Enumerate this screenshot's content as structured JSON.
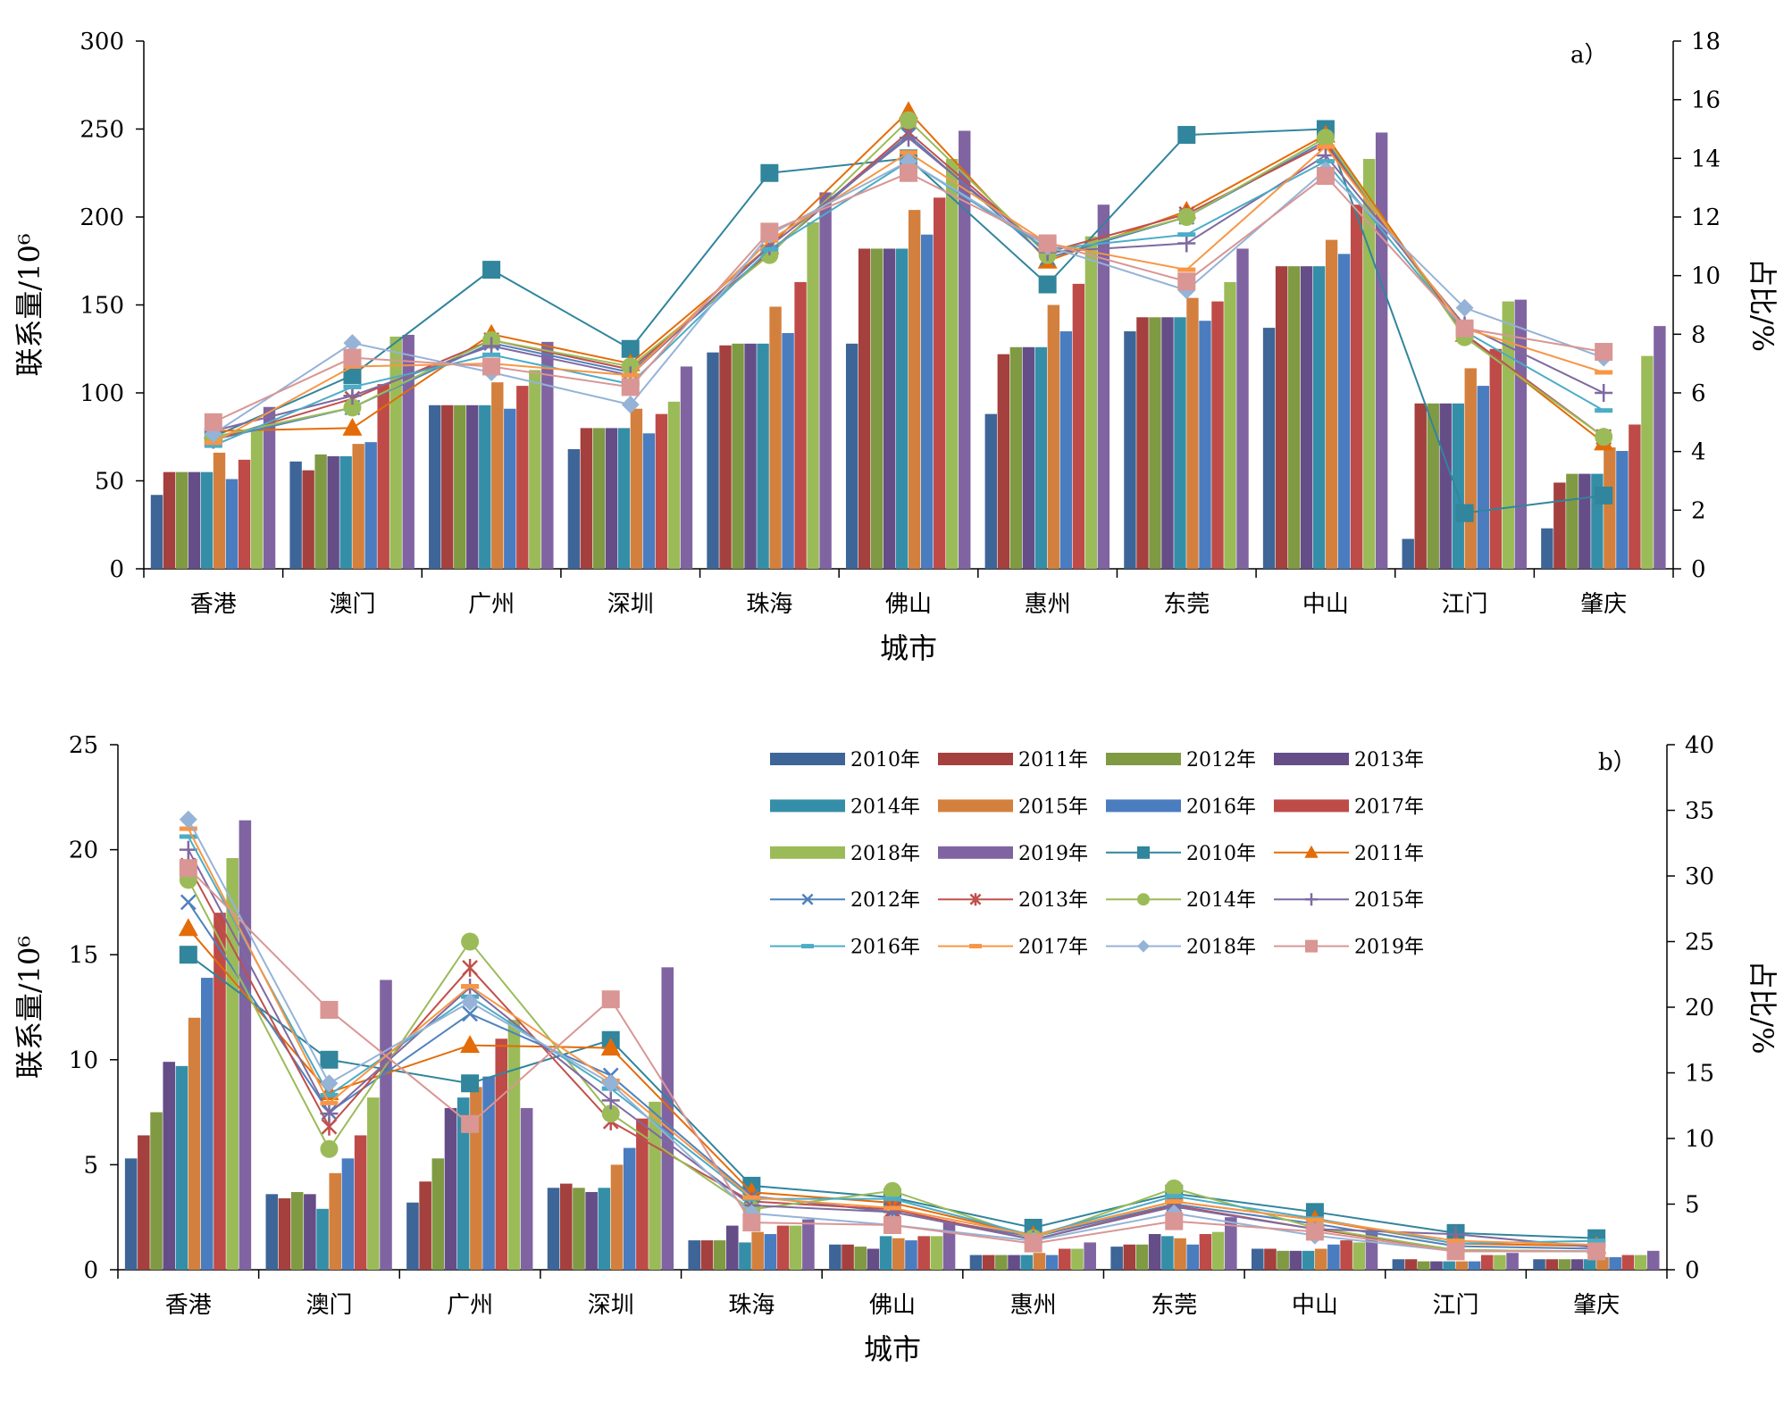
{
  "chart_data": [
    {
      "type": "bar",
      "panel_label": "a）",
      "categories": [
        "香港",
        "澳门",
        "广州",
        "深圳",
        "珠海",
        "佛山",
        "惠州",
        "东莞",
        "中山",
        "江门",
        "肇庆"
      ],
      "xlabel": "城市",
      "ylabel": "联系量/10⁶",
      "y2label": "占比/%",
      "ylim": [
        0,
        300
      ],
      "y2lim": [
        0,
        18
      ],
      "yticks": [
        0,
        50,
        100,
        150,
        200,
        250,
        300
      ],
      "y2ticks": [
        0,
        2,
        4,
        6,
        8,
        10,
        12,
        14,
        16,
        18
      ],
      "bar_series": [
        {
          "name": "2010年",
          "values": [
            42,
            61,
            93,
            68,
            123,
            128,
            88,
            135,
            137,
            17,
            23
          ]
        },
        {
          "name": "2011年",
          "values": [
            55,
            56,
            93,
            80,
            127,
            182,
            122,
            143,
            172,
            94,
            49
          ]
        },
        {
          "name": "2012年",
          "values": [
            55,
            65,
            93,
            80,
            128,
            182,
            126,
            143,
            172,
            94,
            54
          ]
        },
        {
          "name": "2013年",
          "values": [
            55,
            64,
            93,
            80,
            128,
            182,
            126,
            143,
            172,
            94,
            54
          ]
        },
        {
          "name": "2014年",
          "values": [
            55,
            64,
            93,
            80,
            128,
            182,
            126,
            143,
            172,
            94,
            54
          ]
        },
        {
          "name": "2015年",
          "values": [
            66,
            71,
            106,
            91,
            149,
            204,
            150,
            154,
            187,
            114,
            69
          ]
        },
        {
          "name": "2016年",
          "values": [
            51,
            72,
            91,
            77,
            134,
            190,
            135,
            141,
            179,
            104,
            67
          ]
        },
        {
          "name": "2017年",
          "values": [
            62,
            105,
            104,
            88,
            163,
            211,
            162,
            152,
            207,
            125,
            82
          ]
        },
        {
          "name": "2018年",
          "values": [
            79,
            132,
            113,
            95,
            197,
            233,
            189,
            163,
            233,
            152,
            121
          ]
        },
        {
          "name": "2019年",
          "values": [
            92,
            133,
            129,
            115,
            214,
            249,
            207,
            182,
            248,
            153,
            138
          ]
        }
      ],
      "line_series": [
        {
          "name": "2010年",
          "marker": "square",
          "values": [
            4.5,
            6.6,
            10.2,
            7.5,
            13.5,
            14.0,
            9.7,
            14.8,
            15.0,
            1.9,
            2.5
          ]
        },
        {
          "name": "2011年",
          "marker": "triangle",
          "values": [
            4.7,
            4.8,
            8.0,
            7.0,
            11.0,
            15.6,
            10.5,
            12.2,
            14.8,
            8.0,
            4.3
          ]
        },
        {
          "name": "2012年",
          "marker": "x",
          "values": [
            4.4,
            5.5,
            7.7,
            6.7,
            10.8,
            14.8,
            10.6,
            12.0,
            14.6,
            8.0,
            4.5
          ]
        },
        {
          "name": "2013年",
          "marker": "star",
          "values": [
            4.4,
            5.8,
            7.8,
            6.8,
            10.8,
            14.9,
            10.8,
            12.1,
            14.5,
            8.0,
            4.5
          ]
        },
        {
          "name": "2014年",
          "marker": "circle",
          "values": [
            4.5,
            5.5,
            7.8,
            6.9,
            10.7,
            15.3,
            10.7,
            12.0,
            14.7,
            7.9,
            4.5
          ]
        },
        {
          "name": "2015年",
          "marker": "plus",
          "values": [
            4.7,
            5.9,
            7.6,
            6.6,
            11.0,
            14.7,
            10.8,
            11.1,
            14.1,
            8.3,
            6.0
          ]
        },
        {
          "name": "2016年",
          "marker": "dash",
          "values": [
            4.2,
            6.2,
            7.3,
            6.3,
            10.9,
            13.9,
            10.9,
            11.4,
            13.9,
            8.1,
            5.4
          ]
        },
        {
          "name": "2017年",
          "marker": "dash",
          "values": [
            4.3,
            6.9,
            7.0,
            6.6,
            11.2,
            14.2,
            11.1,
            10.2,
            14.4,
            8.2,
            6.7
          ]
        },
        {
          "name": "2018年",
          "marker": "diamond",
          "values": [
            4.6,
            7.7,
            6.7,
            5.6,
            11.4,
            13.9,
            11.0,
            9.5,
            13.6,
            8.9,
            7.2
          ]
        },
        {
          "name": "2019年",
          "marker": "square",
          "values": [
            5.0,
            7.2,
            6.9,
            6.2,
            11.5,
            13.5,
            11.1,
            9.8,
            13.4,
            8.2,
            7.4
          ]
        }
      ]
    },
    {
      "type": "bar",
      "panel_label": "b）",
      "categories": [
        "香港",
        "澳门",
        "广州",
        "深圳",
        "珠海",
        "佛山",
        "惠州",
        "东莞",
        "中山",
        "江门",
        "肇庆"
      ],
      "xlabel": "城市",
      "ylabel": "联系量/10⁶",
      "y2label": "占比/%",
      "ylim": [
        0,
        25
      ],
      "y2lim": [
        0,
        40
      ],
      "yticks": [
        0,
        5,
        10,
        15,
        20,
        25
      ],
      "y2ticks": [
        0,
        5,
        10,
        15,
        20,
        25,
        30,
        35,
        40
      ],
      "legend": "top-right",
      "bar_series": [
        {
          "name": "2010年",
          "values": [
            5.3,
            3.6,
            3.2,
            3.9,
            1.4,
            1.2,
            0.7,
            1.1,
            1.0,
            0.5,
            0.5
          ]
        },
        {
          "name": "2011年",
          "values": [
            6.4,
            3.4,
            4.2,
            4.1,
            1.4,
            1.2,
            0.7,
            1.2,
            1.0,
            0.5,
            0.5
          ]
        },
        {
          "name": "2012年",
          "values": [
            7.5,
            3.7,
            5.3,
            3.9,
            1.4,
            1.1,
            0.7,
            1.2,
            0.9,
            0.4,
            0.5
          ]
        },
        {
          "name": "2013年",
          "values": [
            9.9,
            3.6,
            7.7,
            3.7,
            2.1,
            1.0,
            0.7,
            1.7,
            0.9,
            0.4,
            0.5
          ]
        },
        {
          "name": "2014年",
          "values": [
            9.7,
            2.9,
            8.2,
            3.9,
            1.3,
            1.6,
            0.7,
            1.6,
            0.9,
            0.4,
            0.5
          ]
        },
        {
          "name": "2015年",
          "values": [
            12.0,
            4.6,
            8.7,
            5.0,
            1.8,
            1.5,
            0.8,
            1.5,
            1.0,
            0.4,
            0.6
          ]
        },
        {
          "name": "2016年",
          "values": [
            13.9,
            5.3,
            9.2,
            5.8,
            1.7,
            1.4,
            0.7,
            1.2,
            1.2,
            0.4,
            0.6
          ]
        },
        {
          "name": "2017年",
          "values": [
            17.0,
            6.4,
            11.0,
            7.2,
            2.1,
            1.6,
            1.0,
            1.7,
            1.4,
            0.7,
            0.7
          ]
        },
        {
          "name": "2018年",
          "values": [
            19.6,
            8.2,
            11.9,
            8.0,
            2.1,
            1.6,
            1.0,
            1.8,
            1.3,
            0.7,
            0.7
          ]
        },
        {
          "name": "2019年",
          "values": [
            21.4,
            13.8,
            7.7,
            14.4,
            2.4,
            2.3,
            1.3,
            2.5,
            1.9,
            0.8,
            0.9
          ]
        }
      ],
      "line_series": [
        {
          "name": "2010年",
          "marker": "square",
          "values": [
            24.0,
            16.0,
            14.2,
            17.5,
            6.4,
            5.5,
            3.2,
            5.8,
            4.4,
            2.8,
            2.4
          ]
        },
        {
          "name": "2011年",
          "marker": "triangle",
          "values": [
            26.0,
            13.5,
            17.1,
            16.9,
            5.9,
            5.1,
            2.6,
            5.2,
            3.8,
            2.0,
            1.8
          ]
        },
        {
          "name": "2012年",
          "marker": "x",
          "values": [
            28.0,
            12.0,
            19.5,
            14.8,
            5.6,
            4.4,
            2.5,
            5.0,
            3.5,
            1.8,
            1.6
          ]
        },
        {
          "name": "2013年",
          "marker": "star",
          "values": [
            30.8,
            10.9,
            23.0,
            11.3,
            5.2,
            4.6,
            2.3,
            4.9,
            3.1,
            1.5,
            1.4
          ]
        },
        {
          "name": "2014年",
          "marker": "circle",
          "values": [
            29.7,
            9.2,
            25.0,
            11.9,
            4.6,
            6.0,
            2.4,
            6.2,
            3.2,
            1.5,
            1.4
          ]
        },
        {
          "name": "2015年",
          "marker": "plus",
          "values": [
            32.0,
            11.9,
            21.5,
            12.9,
            4.9,
            4.4,
            2.3,
            4.8,
            3.1,
            2.7,
            1.7
          ]
        },
        {
          "name": "2016年",
          "marker": "dash",
          "values": [
            33.0,
            13.3,
            20.8,
            13.8,
            5.4,
            5.4,
            2.6,
            5.6,
            3.9,
            2.0,
            2.2
          ]
        },
        {
          "name": "2017年",
          "marker": "dash",
          "values": [
            33.6,
            12.7,
            21.6,
            14.4,
            5.5,
            4.7,
            2.6,
            5.2,
            3.8,
            2.2,
            1.9
          ]
        },
        {
          "name": "2018年",
          "marker": "diamond",
          "values": [
            34.3,
            14.2,
            20.4,
            14.2,
            4.3,
            3.4,
            2.2,
            4.3,
            2.6,
            1.4,
            1.4
          ]
        },
        {
          "name": "2019年",
          "marker": "square",
          "values": [
            30.6,
            19.8,
            11.1,
            20.6,
            3.6,
            3.4,
            2.0,
            3.7,
            2.9,
            1.4,
            1.4
          ]
        }
      ]
    }
  ],
  "colors": {
    "bars": [
      "#3e6597",
      "#a4403e",
      "#7f9a43",
      "#654d88",
      "#358ea8",
      "#d3803e",
      "#4a7cc0",
      "#be4b48",
      "#9bbb59",
      "#8064a2"
    ],
    "lines": [
      "#31859c",
      "#e36c09",
      "#4f81bd",
      "#c0504d",
      "#9bbb59",
      "#7f6aa0",
      "#4bacc6",
      "#f79646",
      "#95b3d7",
      "#d99694"
    ]
  }
}
